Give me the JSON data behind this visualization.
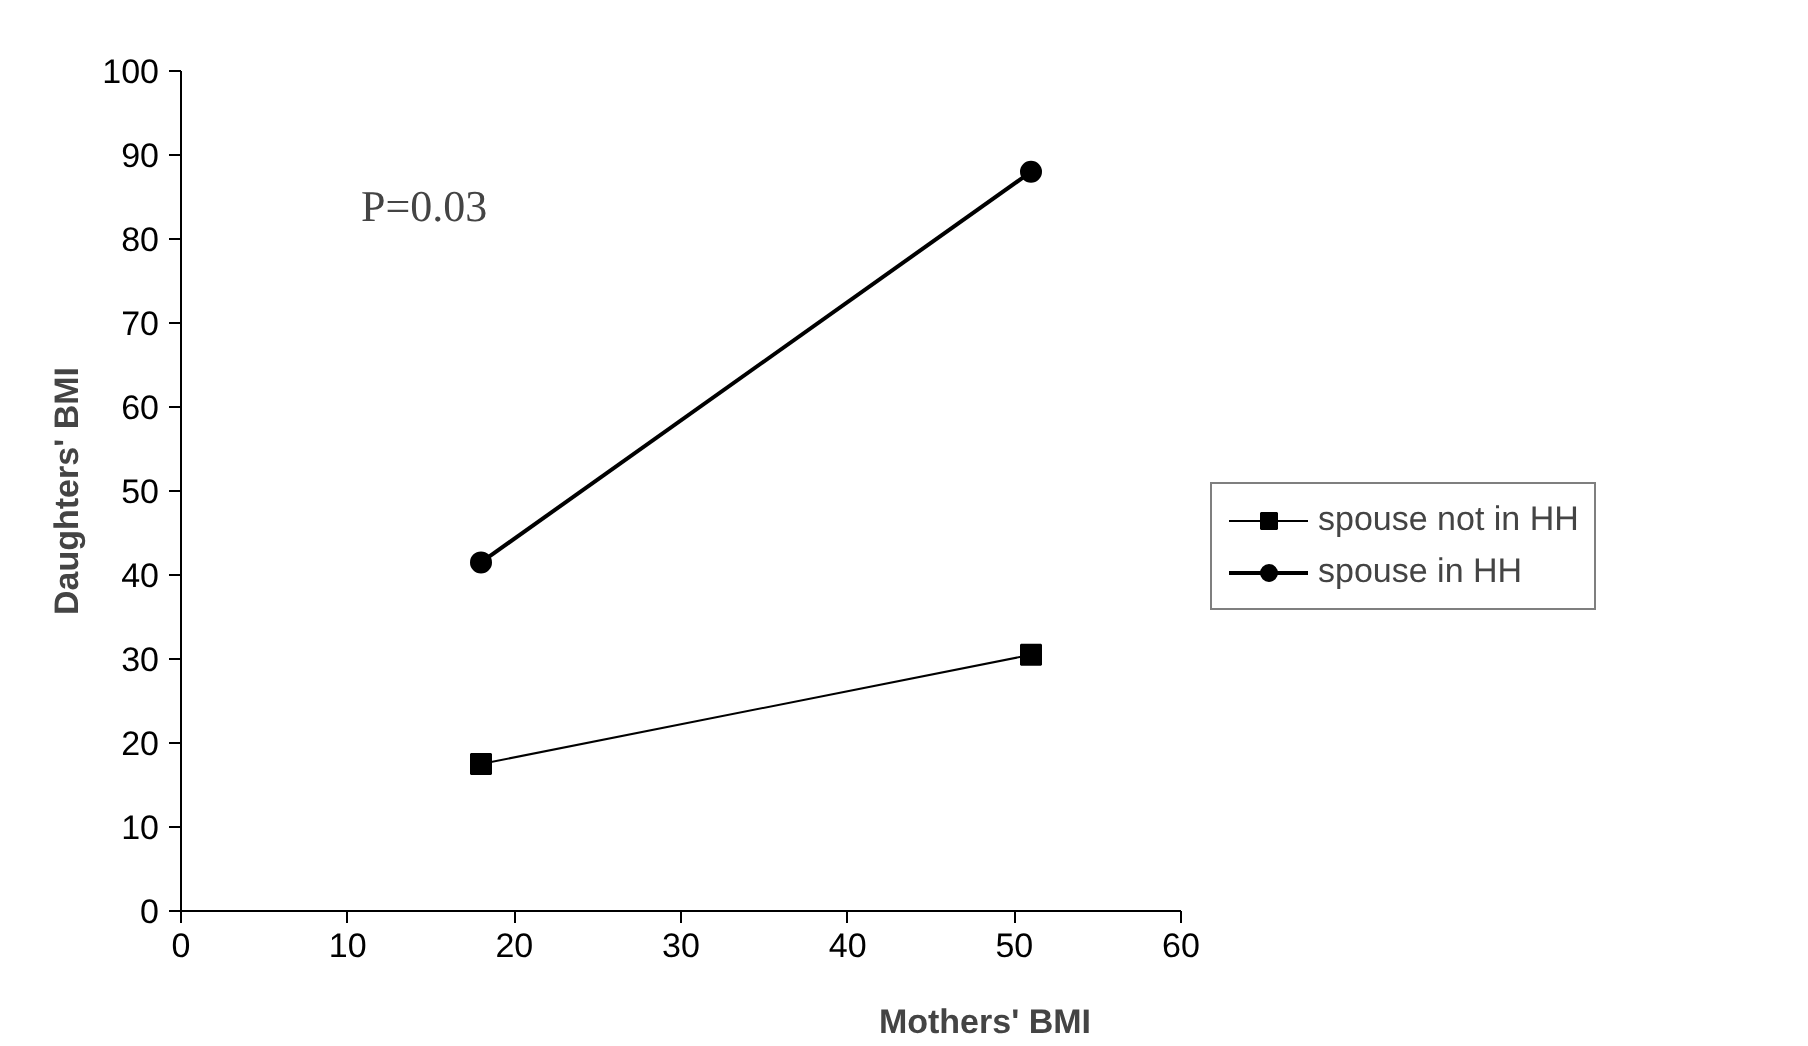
{
  "chart_data": {
    "type": "line",
    "xlabel": "Mothers' BMI",
    "ylabel": "Daughters' BMI",
    "x": [
      18,
      51
    ],
    "series": [
      {
        "name": "spouse not in HH",
        "color": "#000000",
        "marker": "square",
        "values": [
          17.5,
          30.5
        ]
      },
      {
        "name": "spouse in HH",
        "color": "#000000",
        "marker": "circle",
        "values": [
          41.5,
          88
        ]
      }
    ],
    "xlim": [
      0,
      60
    ],
    "xticks": [
      0,
      10,
      20,
      30,
      40,
      50,
      60
    ],
    "ylim": [
      0,
      100
    ],
    "yticks": [
      0,
      10,
      20,
      30,
      40,
      50,
      60,
      70,
      80,
      90,
      100
    ],
    "annotations": [
      "P=0.03"
    ],
    "grid": false,
    "legend": "right",
    "line_style": "solid"
  }
}
